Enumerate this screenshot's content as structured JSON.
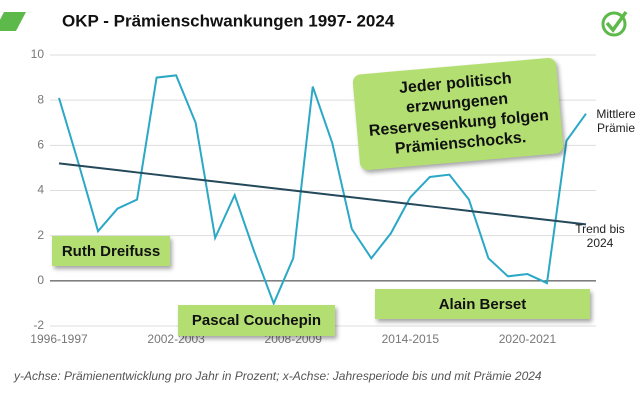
{
  "chart_data": {
    "type": "line",
    "title": "OKP - Prämienschwankungen 1997- 2024",
    "categories": [
      "1996-1997",
      null,
      null,
      null,
      null,
      null,
      "2002-2003",
      null,
      null,
      null,
      null,
      null,
      "2008-2009",
      null,
      null,
      null,
      null,
      null,
      "2014-2015",
      null,
      null,
      null,
      null,
      null,
      "2020-2021",
      null,
      null,
      null
    ],
    "series": [
      {
        "name": "Mittlere Prämie",
        "color": "#2ba8c6",
        "values": [
          8.1,
          5.2,
          2.2,
          3.2,
          3.6,
          9.0,
          9.1,
          7.0,
          1.9,
          3.8,
          1.3,
          -1.0,
          1.0,
          8.6,
          6.1,
          2.3,
          1.0,
          2.1,
          3.7,
          4.6,
          4.7,
          3.6,
          1.0,
          0.2,
          0.3,
          -0.1,
          6.2,
          7.4
        ]
      },
      {
        "name": "Trend bis 2024",
        "color": "#24495a",
        "values": [
          5.2,
          5.1,
          5.0,
          4.9,
          4.8,
          4.7,
          4.6,
          4.5,
          4.4,
          4.3,
          4.2,
          4.1,
          4.0,
          3.9,
          3.8,
          3.7,
          3.6,
          3.5,
          3.4,
          3.3,
          3.2,
          3.1,
          3.0,
          2.9,
          2.8,
          2.7,
          2.6,
          2.5
        ]
      }
    ],
    "ylim": [
      -2,
      10
    ],
    "yticks": [
      -2,
      0,
      2,
      4,
      6,
      8,
      10
    ],
    "grid": true,
    "annotations": [
      "Ruth Dreifuss",
      "Pascal Couchepin",
      "Alain Berset",
      "Jeder politisch erzwungenen Reservesenkung folgen Prämienschocks."
    ],
    "note": "y-Achse: Prämienentwicklung pro Jahr in Prozent; x-Achse: Jahresperiode bis und mit Prämie 2024"
  }
}
